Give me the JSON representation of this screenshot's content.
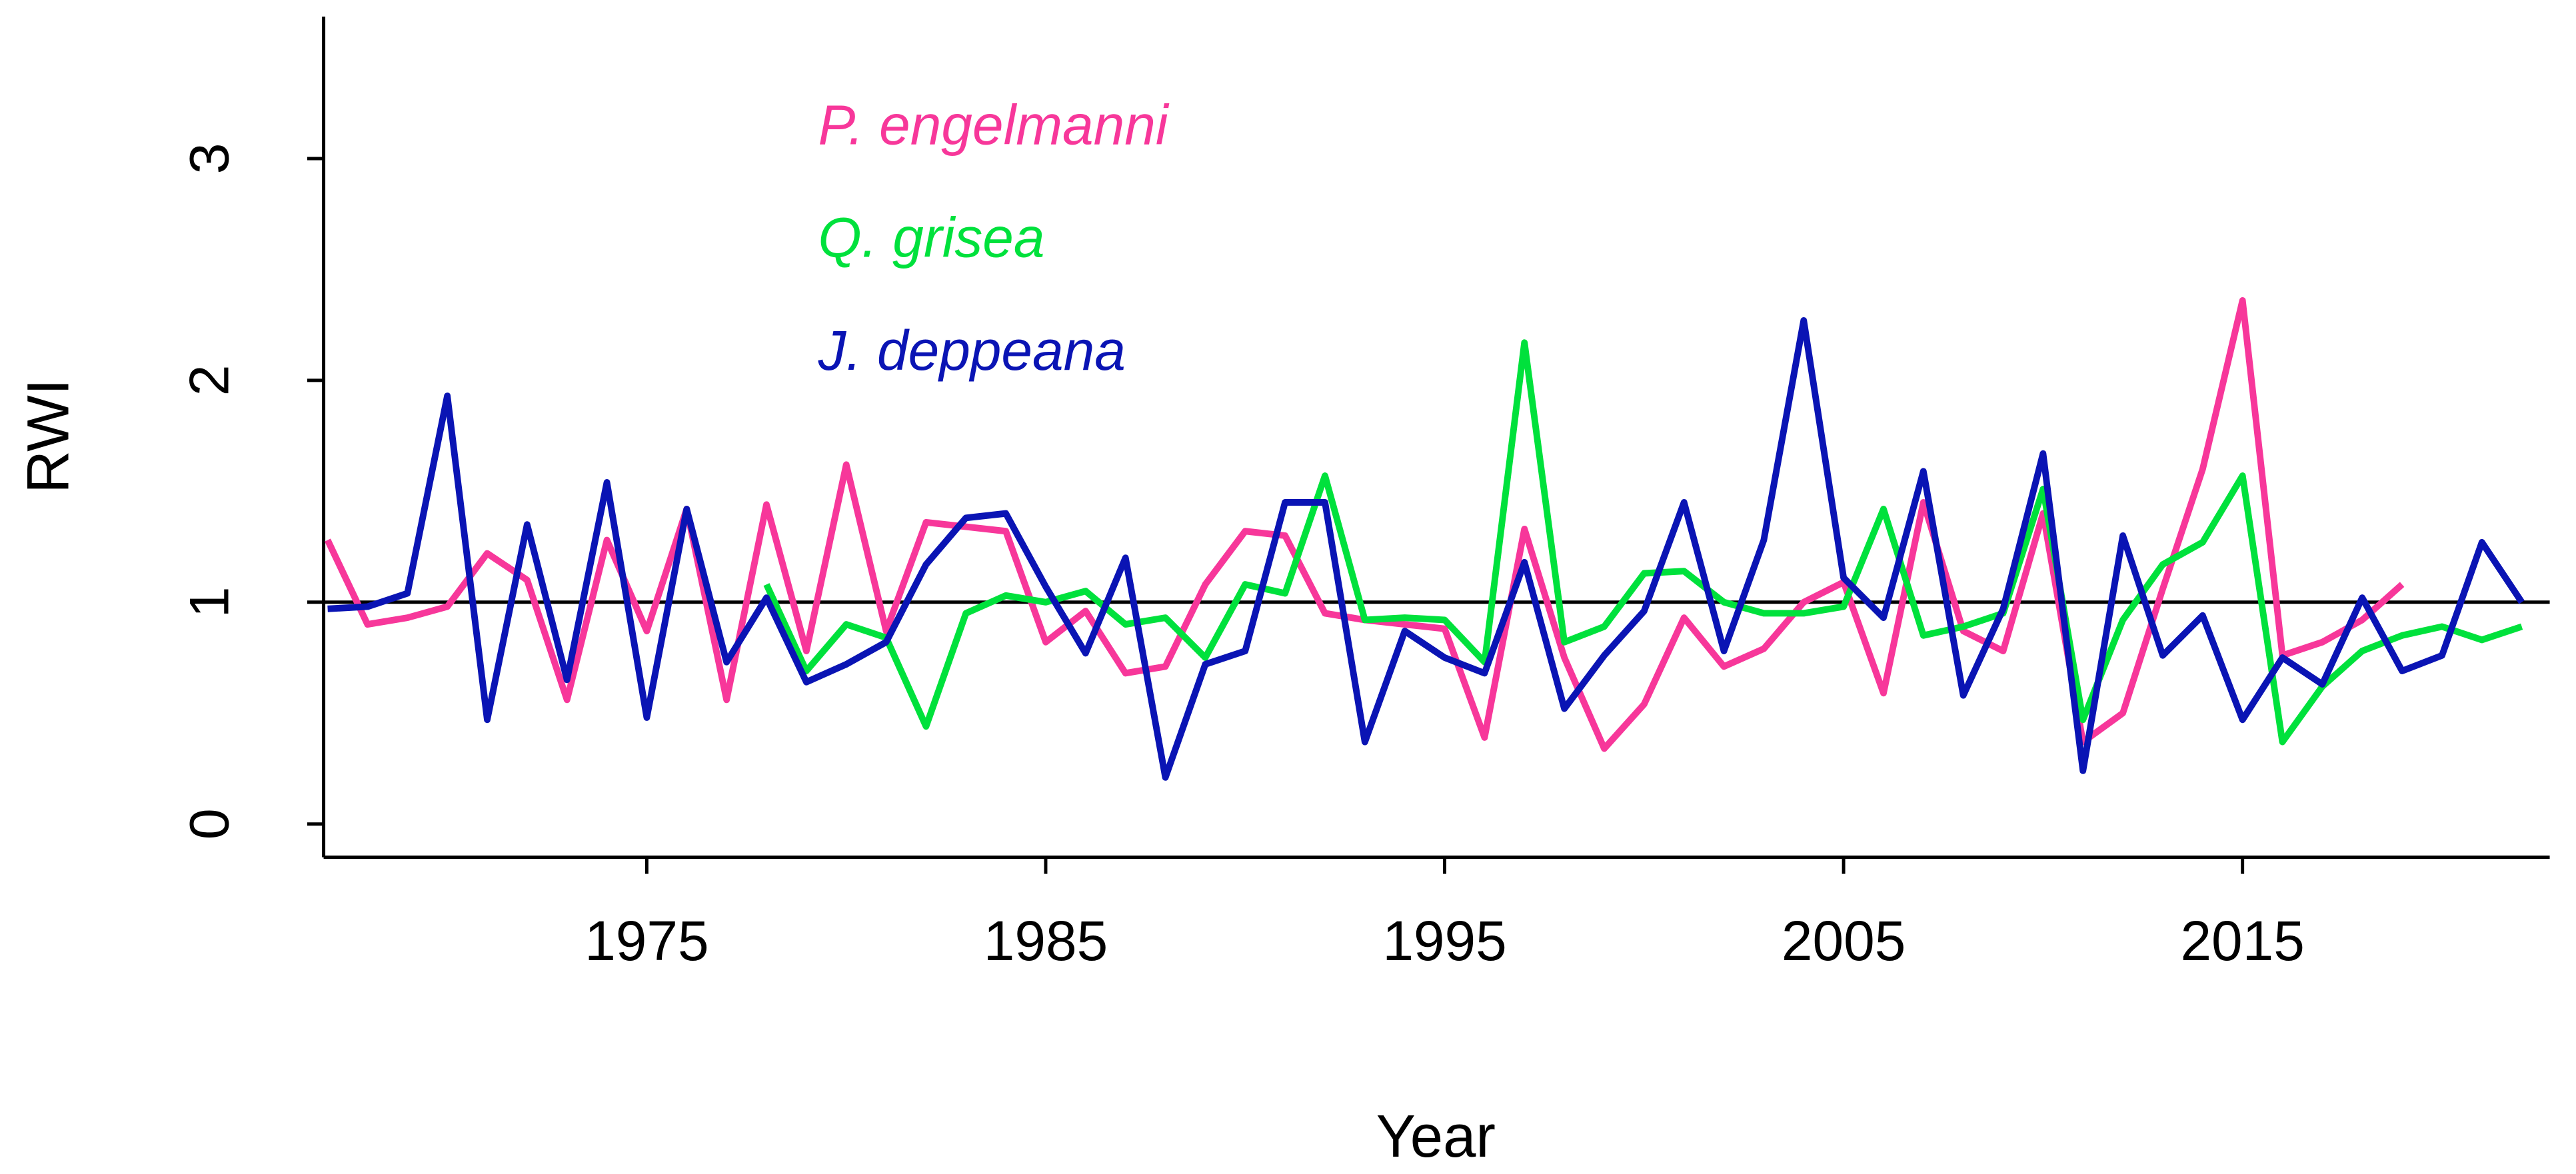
{
  "chart_data": {
    "type": "line",
    "x": [
      1967,
      1968,
      1969,
      1970,
      1971,
      1972,
      1973,
      1974,
      1975,
      1976,
      1977,
      1978,
      1979,
      1980,
      1981,
      1982,
      1983,
      1984,
      1985,
      1986,
      1987,
      1988,
      1989,
      1990,
      1991,
      1992,
      1993,
      1994,
      1995,
      1996,
      1997,
      1998,
      1999,
      2000,
      2001,
      2002,
      2003,
      2004,
      2005,
      2006,
      2007,
      2008,
      2009,
      2010,
      2011,
      2012,
      2013,
      2014,
      2015,
      2016,
      2017,
      2018,
      2019,
      2020,
      2021,
      2022
    ],
    "series": [
      {
        "name": "P. engelmanni",
        "color": "#f7379a",
        "values": [
          1.28,
          0.9,
          0.93,
          0.98,
          1.22,
          1.1,
          0.56,
          1.28,
          0.87,
          1.42,
          0.56,
          1.44,
          0.78,
          1.62,
          0.87,
          1.36,
          1.34,
          1.32,
          0.82,
          0.96,
          0.68,
          0.71,
          1.08,
          1.32,
          1.3,
          0.95,
          0.92,
          0.9,
          0.88,
          0.39,
          1.33,
          0.75,
          0.34,
          0.54,
          0.93,
          0.71,
          0.79,
          1.0,
          1.09,
          0.59,
          1.45,
          0.87,
          0.78,
          1.4,
          0.37,
          0.5,
          1.06,
          1.6,
          2.36,
          0.76,
          0.82,
          0.92,
          1.08,
          null,
          null,
          null
        ]
      },
      {
        "name": "Q. grisea",
        "color": "#00e13c",
        "values": [
          null,
          null,
          null,
          null,
          null,
          null,
          null,
          null,
          null,
          null,
          null,
          1.08,
          0.69,
          0.9,
          0.84,
          0.44,
          0.95,
          1.03,
          1.0,
          1.05,
          0.9,
          0.93,
          0.75,
          1.08,
          1.04,
          1.57,
          0.92,
          0.93,
          0.92,
          0.73,
          2.17,
          0.82,
          0.89,
          1.13,
          1.14,
          1.0,
          0.95,
          0.95,
          0.98,
          1.42,
          0.85,
          0.89,
          0.95,
          1.51,
          0.47,
          0.92,
          1.17,
          1.27,
          1.57,
          0.37,
          0.62,
          0.78,
          0.85,
          0.89,
          0.83,
          0.89
        ]
      },
      {
        "name": "J. deppeana",
        "color": "#0a14b4",
        "values": [
          0.97,
          0.98,
          1.04,
          1.93,
          0.47,
          1.35,
          0.65,
          1.54,
          0.48,
          1.42,
          0.73,
          1.02,
          0.64,
          0.72,
          0.82,
          1.17,
          1.38,
          1.4,
          1.07,
          0.77,
          1.2,
          0.21,
          0.72,
          0.78,
          1.45,
          1.45,
          0.37,
          0.87,
          0.75,
          0.68,
          1.18,
          0.52,
          0.76,
          0.96,
          1.45,
          0.78,
          1.28,
          2.27,
          1.11,
          0.93,
          1.59,
          0.58,
          0.97,
          1.67,
          0.24,
          1.3,
          0.76,
          0.94,
          0.47,
          0.75,
          0.63,
          1.02,
          0.69,
          0.76,
          1.27,
          1.0
        ]
      }
    ],
    "xlabel": "Year",
    "ylabel": "RWI",
    "xlim": [
      1966.9,
      2022.7
    ],
    "xticks": [
      1975,
      1985,
      1995,
      2005,
      2015
    ],
    "ylim": [
      -0.15,
      3.64
    ],
    "yticks": [
      0,
      1,
      2,
      3
    ],
    "hline": 1
  }
}
